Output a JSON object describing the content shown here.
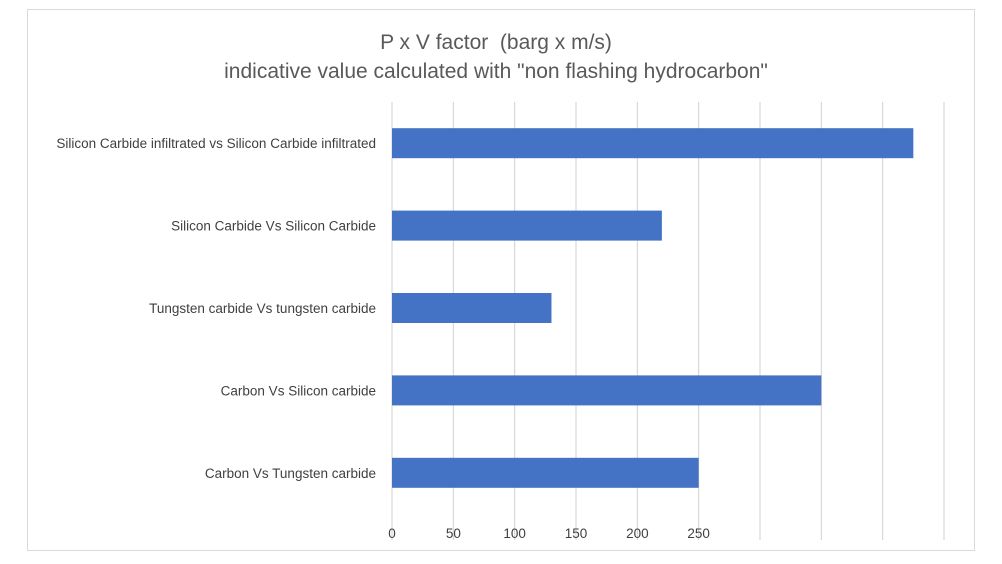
{
  "chart_data": {
    "type": "bar",
    "orientation": "horizontal",
    "title": "P x V factor  (barg x m/s)",
    "subtitle": "indicative value calculated with \"non flashing hydrocarbon\"",
    "categories": [
      "Silicon Carbide infiltrated vs Silicon Carbide infiltrated",
      "Silicon Carbide Vs Silicon Carbide",
      "Tungsten carbide Vs tungsten carbide",
      "Carbon Vs Silicon carbide",
      "Carbon Vs Tungsten carbide"
    ],
    "values": [
      425,
      220,
      130,
      350,
      250
    ],
    "xlim": [
      0,
      450
    ],
    "xticks": [
      0,
      50,
      100,
      150,
      200,
      250
    ],
    "grid": true,
    "bar_color": "#4472c4",
    "legend": "none"
  }
}
